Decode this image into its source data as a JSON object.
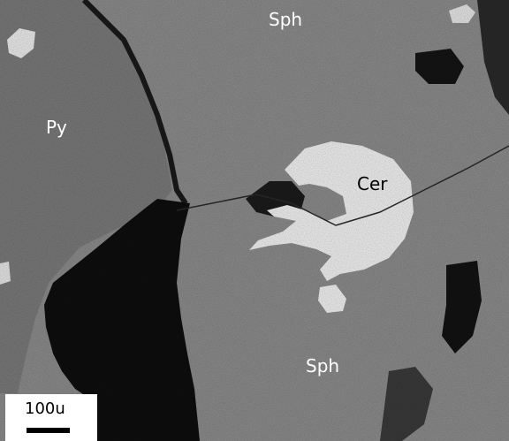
{
  "image": {
    "colors": {
      "sphalerite": "#8c8c8c",
      "pyrite": "#7a7a7a",
      "cerussite": "#f2f2f2",
      "void": "#0e0e0e",
      "scale_box": "#ffffff"
    }
  },
  "labels": {
    "sph_top": "Sph",
    "py": "Py",
    "cer": "Cer",
    "sph_bottom": "Sph"
  },
  "scale_bar": {
    "label": "100u"
  }
}
